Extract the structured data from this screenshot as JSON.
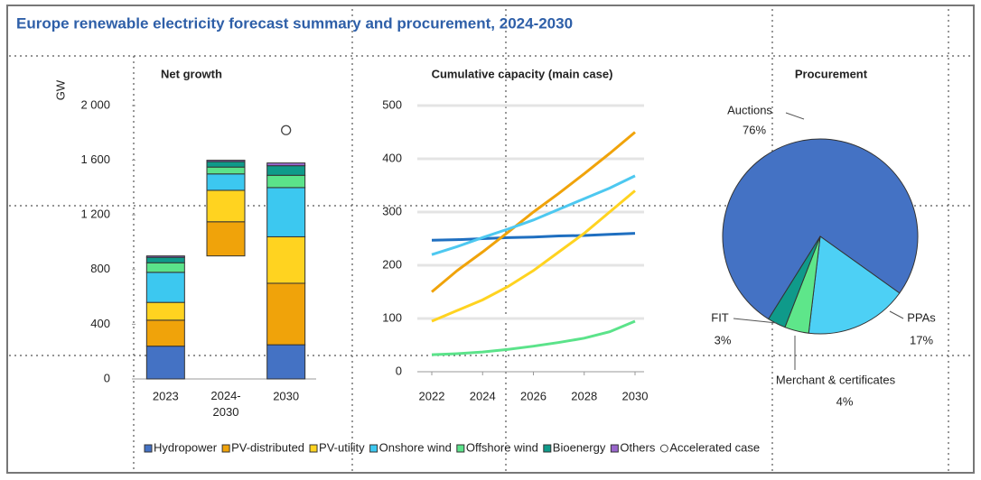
{
  "title": "Europe renewable electricity forecast summary and procurement, 2024-2030",
  "chart_data": [
    {
      "type": "bar",
      "stacked": true,
      "title": "Net growth",
      "ylabel": "GW",
      "categories": [
        "2023",
        "2024-2030",
        "2030"
      ],
      "floating": [
        false,
        true,
        false
      ],
      "ylim": [
        0,
        2000
      ],
      "yticks": [
        0,
        400,
        800,
        {
          "value": 1200,
          "label": "1 200"
        },
        {
          "value": 1600,
          "label": "1 600"
        },
        {
          "value": 2000,
          "label": "2 000"
        }
      ],
      "series": [
        {
          "name": "Hydropower",
          "color": "#4472c4",
          "values": [
            240,
            0,
            250
          ]
        },
        {
          "name": "PV-distributed",
          "color": "#f0a30a",
          "values": [
            190,
            250,
            450
          ]
        },
        {
          "name": "PV-utility",
          "color": "#ffd320",
          "values": [
            130,
            230,
            340
          ]
        },
        {
          "name": "Onshore wind",
          "color": "#3cc8f0",
          "values": [
            220,
            120,
            360
          ]
        },
        {
          "name": "Offshore wind",
          "color": "#5be38a",
          "values": [
            70,
            50,
            90
          ]
        },
        {
          "name": "Bioenergy",
          "color": "#0f9a8a",
          "values": [
            40,
            40,
            70
          ]
        },
        {
          "name": "Others",
          "color": "#9966cc",
          "values": [
            10,
            10,
            20
          ]
        },
        {
          "name": "Accelerated case",
          "type": "scatter",
          "color": "#ffffff",
          "values": [
            null,
            null,
            1820
          ]
        }
      ]
    },
    {
      "type": "line",
      "title": "Cumulative capacity (main case)",
      "x": [
        2022,
        2023,
        2024,
        2025,
        2026,
        2027,
        2028,
        2029,
        2030
      ],
      "xlim": [
        2022,
        2030
      ],
      "xticks": [
        2022,
        2024,
        2026,
        2028,
        2030
      ],
      "ylim": [
        0,
        500
      ],
      "yticks": [
        0,
        100,
        200,
        300,
        400,
        500
      ],
      "grid": true,
      "series": [
        {
          "color": "#1f6fc0",
          "values": [
            247,
            248,
            250,
            252,
            253,
            255,
            256,
            258,
            260
          ]
        },
        {
          "color": "#f0a30a",
          "values": [
            150,
            190,
            225,
            262,
            300,
            335,
            372,
            410,
            450
          ]
        },
        {
          "color": "#4dc8f0",
          "values": [
            220,
            235,
            252,
            268,
            285,
            305,
            325,
            345,
            368
          ]
        },
        {
          "color": "#ffd320",
          "values": [
            95,
            115,
            135,
            160,
            190,
            225,
            260,
            300,
            340
          ]
        },
        {
          "color": "#5be38a",
          "values": [
            32,
            34,
            37,
            42,
            48,
            55,
            63,
            75,
            95
          ]
        }
      ]
    },
    {
      "type": "pie",
      "title": "Procurement",
      "categories": [
        "Auctions",
        "PPAs",
        "Merchant & certificates",
        "FIT"
      ],
      "values": [
        76,
        17,
        4,
        3
      ],
      "value_labels": [
        "76%",
        "17%",
        "4%",
        "3%"
      ],
      "colors": [
        "#4472c4",
        "#4dd0f5",
        "#5ee68a",
        "#0f9a8a"
      ]
    }
  ]
}
